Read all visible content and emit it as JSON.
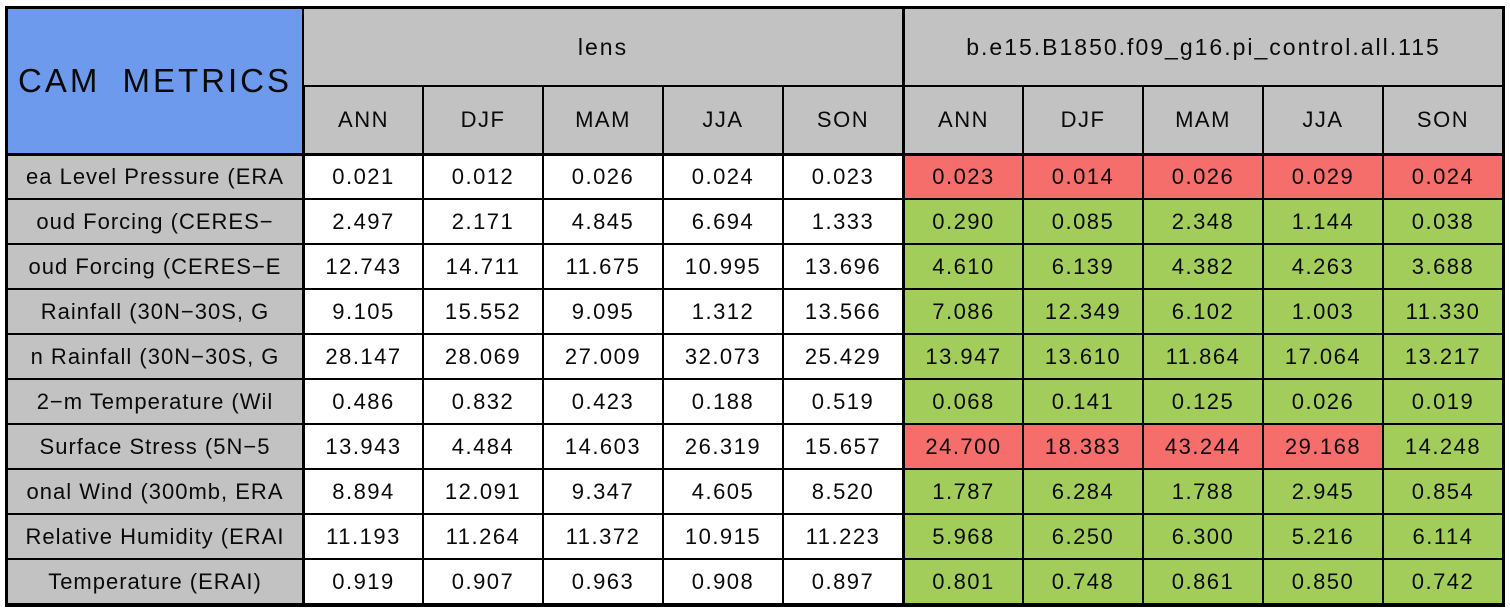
{
  "table": {
    "corner_label": "CAM METRICS",
    "groups": [
      {
        "label": "lens"
      },
      {
        "label": "b.e15.B1850.f09_g16.pi_control.all.115"
      }
    ],
    "season_columns": [
      "ANN",
      "DJF",
      "MAM",
      "JJA",
      "SON"
    ],
    "colors": {
      "title_blue": "#6d9aec",
      "header_gray": "#c2c2c2",
      "lens_cell_white": "#ffffff",
      "worse_red": "#f56e6b",
      "better_green": "#a3cd5b",
      "border_black": "#000000"
    },
    "rows": [
      {
        "label": "ea Level Pressure (ERA",
        "lens": [
          "0.021",
          "0.012",
          "0.026",
          "0.024",
          "0.023"
        ],
        "control": [
          "0.023",
          "0.014",
          "0.026",
          "0.029",
          "0.024"
        ],
        "control_status": [
          "worse",
          "worse",
          "worse",
          "worse",
          "worse"
        ]
      },
      {
        "label": "oud Forcing (CERES−",
        "lens": [
          "2.497",
          "2.171",
          "4.845",
          "6.694",
          "1.333"
        ],
        "control": [
          "0.290",
          "0.085",
          "2.348",
          "1.144",
          "0.038"
        ],
        "control_status": [
          "better",
          "better",
          "better",
          "better",
          "better"
        ]
      },
      {
        "label": "oud Forcing (CERES−E",
        "lens": [
          "12.743",
          "14.711",
          "11.675",
          "10.995",
          "13.696"
        ],
        "control": [
          "4.610",
          "6.139",
          "4.382",
          "4.263",
          "3.688"
        ],
        "control_status": [
          "better",
          "better",
          "better",
          "better",
          "better"
        ]
      },
      {
        "label": "Rainfall (30N−30S, G",
        "lens": [
          "9.105",
          "15.552",
          "9.095",
          "1.312",
          "13.566"
        ],
        "control": [
          "7.086",
          "12.349",
          "6.102",
          "1.003",
          "11.330"
        ],
        "control_status": [
          "better",
          "better",
          "better",
          "better",
          "better"
        ]
      },
      {
        "label": "n Rainfall (30N−30S, G",
        "lens": [
          "28.147",
          "28.069",
          "27.009",
          "32.073",
          "25.429"
        ],
        "control": [
          "13.947",
          "13.610",
          "11.864",
          "17.064",
          "13.217"
        ],
        "control_status": [
          "better",
          "better",
          "better",
          "better",
          "better"
        ]
      },
      {
        "label": "2−m Temperature (Wil",
        "lens": [
          "0.486",
          "0.832",
          "0.423",
          "0.188",
          "0.519"
        ],
        "control": [
          "0.068",
          "0.141",
          "0.125",
          "0.026",
          "0.019"
        ],
        "control_status": [
          "better",
          "better",
          "better",
          "better",
          "better"
        ]
      },
      {
        "label": "Surface Stress (5N−5",
        "lens": [
          "13.943",
          "4.484",
          "14.603",
          "26.319",
          "15.657"
        ],
        "control": [
          "24.700",
          "18.383",
          "43.244",
          "29.168",
          "14.248"
        ],
        "control_status": [
          "worse",
          "worse",
          "worse",
          "worse",
          "better"
        ]
      },
      {
        "label": "onal Wind (300mb, ERA",
        "lens": [
          "8.894",
          "12.091",
          "9.347",
          "4.605",
          "8.520"
        ],
        "control": [
          "1.787",
          "6.284",
          "1.788",
          "2.945",
          "0.854"
        ],
        "control_status": [
          "better",
          "better",
          "better",
          "better",
          "better"
        ]
      },
      {
        "label": "Relative Humidity (ERAI",
        "lens": [
          "11.193",
          "11.264",
          "11.372",
          "10.915",
          "11.223"
        ],
        "control": [
          "5.968",
          "6.250",
          "6.300",
          "5.216",
          "6.114"
        ],
        "control_status": [
          "better",
          "better",
          "better",
          "better",
          "better"
        ]
      },
      {
        "label": "Temperature (ERAI)",
        "lens": [
          "0.919",
          "0.907",
          "0.963",
          "0.908",
          "0.897"
        ],
        "control": [
          "0.801",
          "0.748",
          "0.861",
          "0.850",
          "0.742"
        ],
        "control_status": [
          "better",
          "better",
          "better",
          "better",
          "better"
        ]
      }
    ]
  },
  "chart_data": {
    "type": "table",
    "title": "CAM METRICS",
    "column_groups": [
      "lens",
      "b.e15.B1850.f09_g16.pi_control.all.115"
    ],
    "columns": [
      "ANN",
      "DJF",
      "MAM",
      "JJA",
      "SON"
    ],
    "row_labels": [
      "ea Level Pressure (ERA",
      "oud Forcing (CERES−",
      "oud Forcing (CERES−E",
      "Rainfall (30N−30S, G",
      "n Rainfall (30N−30S, G",
      "2−m Temperature (Wil",
      "Surface Stress (5N−5",
      "onal Wind (300mb, ERA",
      "Relative Humidity (ERAI",
      "Temperature (ERAI)"
    ],
    "series": [
      {
        "name": "lens",
        "values": [
          [
            0.021,
            0.012,
            0.026,
            0.024,
            0.023
          ],
          [
            2.497,
            2.171,
            4.845,
            6.694,
            1.333
          ],
          [
            12.743,
            14.711,
            11.675,
            10.995,
            13.696
          ],
          [
            9.105,
            15.552,
            9.095,
            1.312,
            13.566
          ],
          [
            28.147,
            28.069,
            27.009,
            32.073,
            25.429
          ],
          [
            0.486,
            0.832,
            0.423,
            0.188,
            0.519
          ],
          [
            13.943,
            4.484,
            14.603,
            26.319,
            15.657
          ],
          [
            8.894,
            12.091,
            9.347,
            4.605,
            8.52
          ],
          [
            11.193,
            11.264,
            11.372,
            10.915,
            11.223
          ],
          [
            0.919,
            0.907,
            0.963,
            0.908,
            0.897
          ]
        ]
      },
      {
        "name": "b.e15.B1850.f09_g16.pi_control.all.115",
        "values": [
          [
            0.023,
            0.014,
            0.026,
            0.029,
            0.024
          ],
          [
            0.29,
            0.085,
            2.348,
            1.144,
            0.038
          ],
          [
            4.61,
            6.139,
            4.382,
            4.263,
            3.688
          ],
          [
            7.086,
            12.349,
            6.102,
            1.003,
            11.33
          ],
          [
            13.947,
            13.61,
            11.864,
            17.064,
            13.217
          ],
          [
            0.068,
            0.141,
            0.125,
            0.026,
            0.019
          ],
          [
            24.7,
            18.383,
            43.244,
            29.168,
            14.248
          ],
          [
            1.787,
            6.284,
            1.788,
            2.945,
            0.854
          ],
          [
            5.968,
            6.25,
            6.3,
            5.216,
            6.114
          ],
          [
            0.801,
            0.748,
            0.861,
            0.85,
            0.742
          ]
        ]
      }
    ],
    "cell_colors_meaning": {
      "red": "worse than comparison",
      "green": "better than comparison",
      "white": "reference (lens)"
    }
  }
}
